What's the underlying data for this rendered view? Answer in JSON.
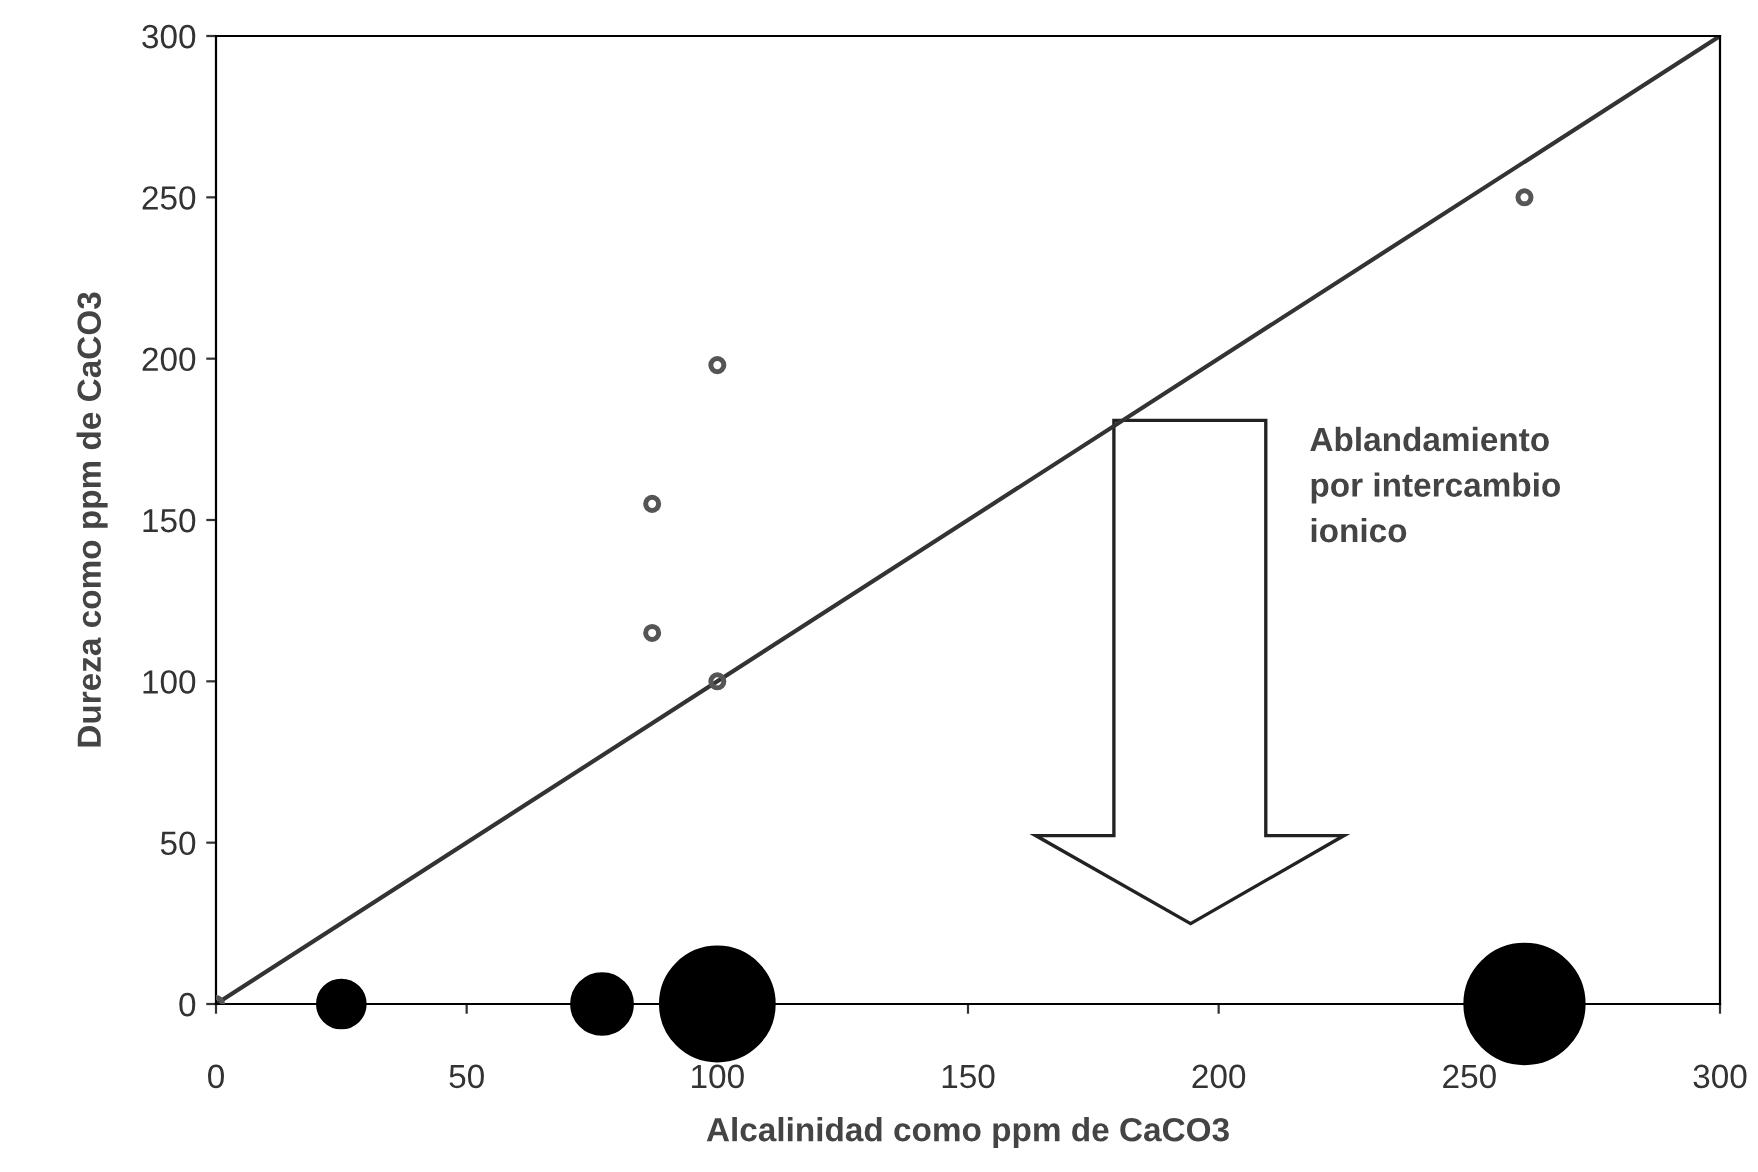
{
  "chart_data": {
    "type": "scatter",
    "xlabel": "Alcalinidad como ppm de CaCO3",
    "ylabel": "Dureza como ppm de CaCO3",
    "annotations": [
      "Ablandamiento\npor intercambio\nionico"
    ],
    "series": [
      {
        "type": "line",
        "x": [
          0,
          300
        ],
        "values": [
          0,
          300
        ],
        "color": "#333333",
        "marker": "none"
      },
      {
        "x": [
          0,
          87,
          87,
          100,
          100,
          261
        ],
        "values": [
          0,
          155,
          115,
          198,
          100,
          250
        ],
        "color": "#555555",
        "marker": "circle"
      },
      {
        "type": "bubble",
        "x": [
          25,
          77,
          100,
          261
        ],
        "values": [
          0,
          0,
          0,
          0
        ],
        "sizes": [
          0.16,
          0.26,
          0.91,
          1
        ],
        "color": "#000000"
      }
    ],
    "xlim": [
      0,
      300
    ],
    "ylim": [
      0,
      300
    ],
    "xticks": [
      0,
      50,
      100,
      150,
      200,
      250,
      300
    ],
    "yticks": [
      0,
      50,
      100,
      150,
      200,
      250,
      300
    ],
    "grid": false,
    "legend": false
  }
}
